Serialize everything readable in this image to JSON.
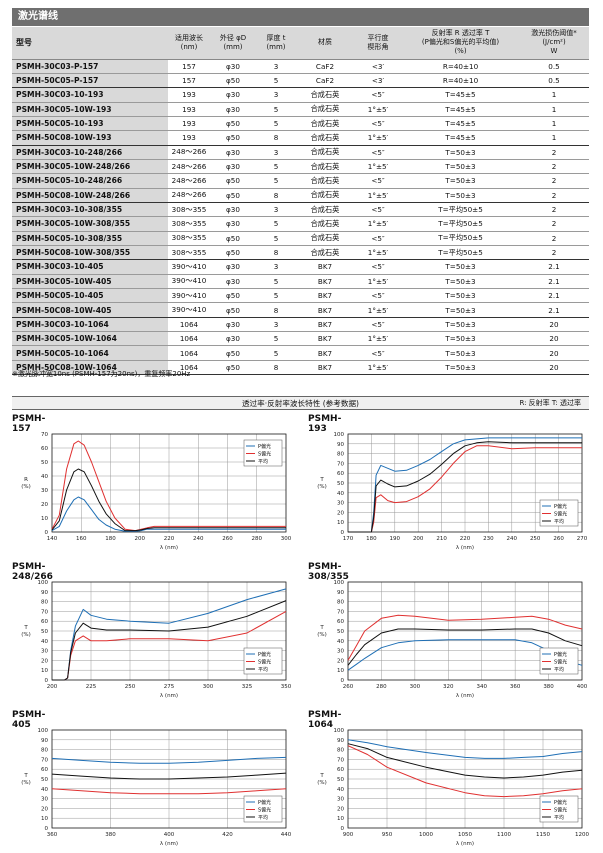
{
  "title": "激光谱线",
  "table": {
    "headers": {
      "model": "型号",
      "wavelength": [
        "适用波长",
        "(nm)"
      ],
      "diameter": [
        "外径 φD",
        "(mm)"
      ],
      "thickness": [
        "厚度 t",
        "(mm)"
      ],
      "material": "材质",
      "parallel": [
        "平行度",
        "楔形角"
      ],
      "refl": [
        "反射率 R   透过率 T",
        "(P偏光和S偏光的平均值)",
        "(%)"
      ],
      "damage": [
        "激光损伤阈值*",
        "(J/cm²)",
        "W"
      ]
    },
    "rows": [
      [
        "PSMH-30C03-P-157",
        "157",
        "φ30",
        "3",
        "CaF2",
        "<3′",
        "R=40±10",
        "0.5"
      ],
      [
        "PSMH-50C05-P-157",
        "157",
        "φ50",
        "5",
        "CaF2",
        "<3′",
        "R=40±10",
        "0.5"
      ],
      [
        "PSMH-30C03-10-193",
        "193",
        "φ30",
        "3",
        "合成石英",
        "<5″",
        "T=45±5",
        "1"
      ],
      [
        "PSMH-30C05-10W-193",
        "193",
        "φ30",
        "5",
        "合成石英",
        "1°±5′",
        "T=45±5",
        "1"
      ],
      [
        "PSMH-50C05-10-193",
        "193",
        "φ50",
        "5",
        "合成石英",
        "<5″",
        "T=45±5",
        "1"
      ],
      [
        "PSMH-50C08-10W-193",
        "193",
        "φ50",
        "8",
        "合成石英",
        "1°±5′",
        "T=45±5",
        "1"
      ],
      [
        "PSMH-30C03-10-248/266",
        "248～266",
        "φ30",
        "3",
        "合成石英",
        "<5″",
        "T=50±3",
        "2"
      ],
      [
        "PSMH-30C05-10W-248/266",
        "248～266",
        "φ30",
        "5",
        "合成石英",
        "1°±5′",
        "T=50±3",
        "2"
      ],
      [
        "PSMH-50C05-10-248/266",
        "248～266",
        "φ50",
        "5",
        "合成石英",
        "<5″",
        "T=50±3",
        "2"
      ],
      [
        "PSMH-50C08-10W-248/266",
        "248～266",
        "φ50",
        "8",
        "合成石英",
        "1°±5′",
        "T=50±3",
        "2"
      ],
      [
        "PSMH-30C03-10-308/355",
        "308～355",
        "φ30",
        "3",
        "合成石英",
        "<5″",
        "T=平均50±5",
        "2"
      ],
      [
        "PSMH-30C05-10W-308/355",
        "308～355",
        "φ30",
        "5",
        "合成石英",
        "1°±5′",
        "T=平均50±5",
        "2"
      ],
      [
        "PSMH-50C05-10-308/355",
        "308～355",
        "φ50",
        "5",
        "合成石英",
        "<5″",
        "T=平均50±5",
        "2"
      ],
      [
        "PSMH-50C08-10W-308/355",
        "308～355",
        "φ50",
        "8",
        "合成石英",
        "1°±5′",
        "T=平均50±5",
        "2"
      ],
      [
        "PSMH-30C03-10-405",
        "390～410",
        "φ30",
        "3",
        "BK7",
        "<5″",
        "T=50±3",
        "2.1"
      ],
      [
        "PSMH-30C05-10W-405",
        "390～410",
        "φ30",
        "5",
        "BK7",
        "1°±5′",
        "T=50±3",
        "2.1"
      ],
      [
        "PSMH-50C05-10-405",
        "390～410",
        "φ50",
        "5",
        "BK7",
        "<5″",
        "T=50±3",
        "2.1"
      ],
      [
        "PSMH-50C08-10W-405",
        "390～410",
        "φ50",
        "8",
        "BK7",
        "1°±5′",
        "T=50±3",
        "2.1"
      ],
      [
        "PSMH-30C03-10-1064",
        "1064",
        "φ30",
        "3",
        "BK7",
        "<5″",
        "T=50±3",
        "20"
      ],
      [
        "PSMH-30C05-10W-1064",
        "1064",
        "φ30",
        "5",
        "BK7",
        "1°±5′",
        "T=50±3",
        "20"
      ],
      [
        "PSMH-50C05-10-1064",
        "1064",
        "φ50",
        "5",
        "BK7",
        "<5″",
        "T=50±3",
        "20"
      ],
      [
        "PSMH-50C08-10W-1064",
        "1064",
        "φ50",
        "8",
        "BK7",
        "1°±5′",
        "T=50±3",
        "20"
      ]
    ]
  },
  "footnote": "※激光脉冲宽10ns (PSMH-157为20ns)，重复频率20Hz",
  "section": {
    "title": "透过率·反射率波长特性 (参考数据)",
    "legend_note": "R: 反射率   T: 透过率"
  },
  "colors": {
    "p": "#1f6fb5",
    "s": "#e03030",
    "avg": "#111111"
  },
  "chart_data": [
    {
      "type": "line",
      "title": "PSMH-157",
      "xlabel": "λ (nm)",
      "ylabel": [
        "R",
        "(%)"
      ],
      "xlim": [
        140,
        300
      ],
      "ylim": [
        0,
        70
      ],
      "xticks": [
        140,
        160,
        180,
        200,
        220,
        240,
        260,
        280,
        300
      ],
      "yticks": [
        0,
        10,
        20,
        30,
        40,
        50,
        60,
        70
      ],
      "legend": [
        "P偏光",
        "S偏光",
        "平均"
      ],
      "series": [
        {
          "name": "P偏光",
          "x": [
            140,
            145,
            150,
            155,
            158,
            162,
            167,
            172,
            177,
            183,
            190,
            197,
            201,
            205,
            210,
            220,
            240,
            260,
            280,
            300
          ],
          "y": [
            1,
            4,
            15,
            23,
            25,
            23,
            16,
            9,
            5,
            2,
            0.5,
            0.5,
            1,
            2,
            2,
            2,
            2,
            2,
            2,
            2
          ]
        },
        {
          "name": "S偏光",
          "x": [
            140,
            145,
            150,
            155,
            158,
            162,
            167,
            172,
            177,
            183,
            190,
            197,
            201,
            205,
            210,
            220,
            240,
            260,
            280,
            300
          ],
          "y": [
            2,
            12,
            45,
            63,
            65,
            62,
            50,
            36,
            22,
            10,
            2,
            1,
            2,
            3,
            4,
            4,
            4,
            4,
            4,
            4
          ]
        },
        {
          "name": "平均",
          "x": [
            140,
            145,
            150,
            155,
            158,
            162,
            167,
            172,
            177,
            183,
            190,
            197,
            201,
            205,
            210,
            220,
            240,
            260,
            280,
            300
          ],
          "y": [
            1.5,
            8,
            30,
            43,
            45,
            43,
            33,
            22,
            13,
            6,
            1,
            1,
            1.5,
            2.5,
            3,
            3,
            3,
            3,
            3,
            3
          ]
        }
      ]
    },
    {
      "type": "line",
      "title": "PSMH-193",
      "xlabel": "λ (nm)",
      "ylabel": [
        "T",
        "(%)"
      ],
      "xlim": [
        170,
        270
      ],
      "ylim": [
        0,
        100
      ],
      "xticks": [
        170,
        180,
        190,
        200,
        210,
        220,
        230,
        240,
        250,
        260,
        270
      ],
      "yticks": [
        0,
        10,
        20,
        30,
        40,
        50,
        60,
        70,
        80,
        90,
        100
      ],
      "legend": [
        "P偏光",
        "S偏光",
        "平均"
      ],
      "series": [
        {
          "name": "P偏光",
          "x": [
            170,
            180,
            181,
            182,
            184,
            187,
            190,
            195,
            200,
            205,
            210,
            215,
            220,
            225,
            230,
            240,
            250,
            260,
            270
          ],
          "y": [
            0,
            0,
            20,
            58,
            68,
            65,
            62,
            63,
            68,
            74,
            82,
            90,
            94,
            95,
            96,
            96,
            96,
            96,
            96
          ]
        },
        {
          "name": "S偏光",
          "x": [
            170,
            180,
            181,
            182,
            184,
            187,
            190,
            195,
            200,
            205,
            210,
            215,
            220,
            225,
            230,
            240,
            250,
            260,
            270
          ],
          "y": [
            0,
            0,
            10,
            35,
            38,
            32,
            30,
            31,
            36,
            44,
            56,
            70,
            82,
            88,
            88,
            85,
            86,
            86,
            86
          ]
        },
        {
          "name": "平均",
          "x": [
            170,
            180,
            181,
            182,
            184,
            187,
            190,
            195,
            200,
            205,
            210,
            215,
            220,
            225,
            230,
            240,
            250,
            260,
            270
          ],
          "y": [
            0,
            0,
            15,
            47,
            53,
            49,
            46,
            47,
            52,
            59,
            69,
            80,
            88,
            91,
            92,
            91,
            91,
            91,
            91
          ]
        }
      ]
    },
    {
      "type": "line",
      "title": "PSMH-248/266",
      "xlabel": "λ (nm)",
      "ylabel": [
        "T",
        "(%)"
      ],
      "xlim": [
        200,
        350
      ],
      "ylim": [
        0,
        100
      ],
      "xticks": [
        200,
        225,
        250,
        275,
        300,
        325,
        350
      ],
      "yticks": [
        0,
        10,
        20,
        30,
        40,
        50,
        60,
        70,
        80,
        90,
        100
      ],
      "legend": [
        "P偏光",
        "S偏光",
        "平均"
      ],
      "series": [
        {
          "name": "P偏光",
          "x": [
            200,
            208,
            210,
            212,
            215,
            220,
            225,
            235,
            250,
            275,
            300,
            325,
            350
          ],
          "y": [
            0,
            0,
            2,
            30,
            55,
            72,
            66,
            62,
            60,
            58,
            68,
            82,
            93
          ]
        },
        {
          "name": "S偏光",
          "x": [
            200,
            208,
            210,
            212,
            215,
            220,
            225,
            235,
            250,
            275,
            300,
            325,
            350
          ],
          "y": [
            0,
            0,
            2,
            25,
            40,
            45,
            40,
            40,
            42,
            42,
            40,
            48,
            70
          ]
        },
        {
          "name": "平均",
          "x": [
            200,
            208,
            210,
            212,
            215,
            220,
            225,
            235,
            250,
            275,
            300,
            325,
            350
          ],
          "y": [
            0,
            0,
            2,
            28,
            48,
            58,
            53,
            51,
            51,
            50,
            54,
            65,
            81
          ]
        }
      ]
    },
    {
      "type": "line",
      "title": "PSMH-308/355",
      "xlabel": "λ (nm)",
      "ylabel": [
        "T",
        "(%)"
      ],
      "xlim": [
        260,
        400
      ],
      "ylim": [
        0,
        100
      ],
      "xticks": [
        260,
        280,
        300,
        320,
        340,
        360,
        380,
        400
      ],
      "yticks": [
        0,
        10,
        20,
        30,
        40,
        50,
        60,
        70,
        80,
        90,
        100
      ],
      "legend": [
        "P偏光",
        "S偏光",
        "平均"
      ],
      "series": [
        {
          "name": "P偏光",
          "x": [
            260,
            265,
            270,
            280,
            290,
            300,
            320,
            340,
            360,
            370,
            380,
            390,
            400
          ],
          "y": [
            10,
            16,
            22,
            33,
            38,
            40,
            41,
            41,
            41,
            38,
            30,
            20,
            15
          ]
        },
        {
          "name": "S偏光",
          "x": [
            260,
            265,
            270,
            280,
            290,
            300,
            320,
            340,
            360,
            370,
            380,
            390,
            400
          ],
          "y": [
            20,
            35,
            50,
            63,
            66,
            65,
            61,
            62,
            64,
            65,
            62,
            56,
            52
          ]
        },
        {
          "name": "平均",
          "x": [
            260,
            265,
            270,
            280,
            290,
            300,
            320,
            340,
            360,
            370,
            380,
            390,
            400
          ],
          "y": [
            15,
            26,
            36,
            48,
            52,
            52,
            51,
            51,
            52,
            52,
            48,
            40,
            35
          ]
        }
      ]
    },
    {
      "type": "line",
      "title": "PSMH-405",
      "xlabel": "λ (nm)",
      "ylabel": [
        "T",
        "(%)"
      ],
      "xlim": [
        360,
        440
      ],
      "ylim": [
        0,
        100
      ],
      "xticks": [
        360,
        380,
        400,
        420,
        440
      ],
      "yticks": [
        0,
        10,
        20,
        30,
        40,
        50,
        60,
        70,
        80,
        90,
        100
      ],
      "legend": [
        "P偏光",
        "S偏光",
        "平均"
      ],
      "series": [
        {
          "name": "P偏光",
          "x": [
            360,
            370,
            380,
            390,
            400,
            410,
            420,
            430,
            440
          ],
          "y": [
            71,
            69,
            67,
            66,
            66,
            67,
            69,
            71,
            72
          ]
        },
        {
          "name": "S偏光",
          "x": [
            360,
            370,
            380,
            390,
            400,
            410,
            420,
            430,
            440
          ],
          "y": [
            40,
            38,
            36,
            35,
            35,
            35,
            36,
            38,
            40
          ]
        },
        {
          "name": "平均",
          "x": [
            360,
            370,
            380,
            390,
            400,
            410,
            420,
            430,
            440
          ],
          "y": [
            55,
            53,
            51,
            50,
            50,
            51,
            52,
            54,
            56
          ]
        }
      ]
    },
    {
      "type": "line",
      "title": "PSMH-1064",
      "xlabel": "λ (nm)",
      "ylabel": [
        "T",
        "(%)"
      ],
      "xlim": [
        900,
        1200
      ],
      "ylim": [
        0,
        100
      ],
      "xticks": [
        900,
        950,
        1000,
        1050,
        1100,
        1150,
        1200
      ],
      "yticks": [
        0,
        10,
        20,
        30,
        40,
        50,
        60,
        70,
        80,
        90,
        100
      ],
      "legend": [
        "P偏光",
        "S偏光",
        "平均"
      ],
      "series": [
        {
          "name": "P偏光",
          "x": [
            900,
            925,
            950,
            1000,
            1050,
            1075,
            1100,
            1125,
            1150,
            1175,
            1200
          ],
          "y": [
            90,
            87,
            83,
            77,
            72,
            71,
            71,
            72,
            73,
            76,
            78
          ]
        },
        {
          "name": "S偏光",
          "x": [
            900,
            925,
            950,
            1000,
            1050,
            1075,
            1100,
            1125,
            1150,
            1175,
            1200
          ],
          "y": [
            84,
            75,
            62,
            46,
            36,
            33,
            32,
            33,
            35,
            38,
            40
          ]
        },
        {
          "name": "平均",
          "x": [
            900,
            925,
            950,
            1000,
            1050,
            1075,
            1100,
            1125,
            1150,
            1175,
            1200
          ],
          "y": [
            86,
            81,
            72,
            62,
            54,
            52,
            51,
            52,
            54,
            57,
            59
          ]
        }
      ]
    }
  ]
}
